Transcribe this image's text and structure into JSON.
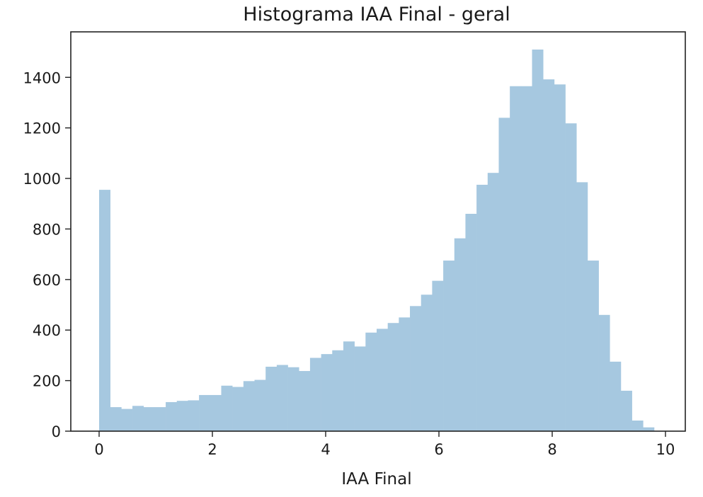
{
  "chart_data": {
    "type": "bar",
    "title": "Histograma IAA Final - geral",
    "xlabel": "IAA Final",
    "ylabel": "",
    "xlim": [
      -0.5,
      10.35
    ],
    "ylim": [
      0,
      1580
    ],
    "xticks": [
      0,
      2,
      4,
      6,
      8,
      10
    ],
    "yticks": [
      0,
      200,
      400,
      600,
      800,
      1000,
      1200,
      1400
    ],
    "grid": false,
    "bar_color": "#a6c8e0",
    "bin_start": 0,
    "bin_width": 0.196,
    "series": [
      {
        "values": [
          955,
          95,
          88,
          100,
          95,
          95,
          115,
          120,
          122,
          143,
          143,
          180,
          175,
          198,
          203,
          255,
          262,
          253,
          238,
          290,
          305,
          320,
          355,
          335,
          390,
          405,
          428,
          450,
          495,
          540,
          595,
          675,
          763,
          860,
          975,
          1022,
          1240,
          1365,
          1365,
          1510,
          1392,
          1372,
          1218,
          985,
          675,
          460,
          275,
          160,
          42,
          15
        ]
      }
    ]
  }
}
